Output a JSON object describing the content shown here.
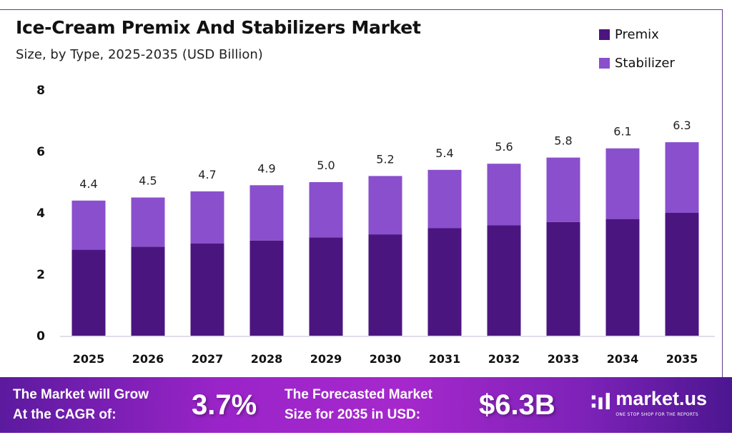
{
  "chart_data": {
    "type": "bar",
    "stacked": true,
    "title": "Ice-Cream Premix And Stabilizers Market",
    "subtitle": "Size, by Type, 2025-2035 (USD Billion)",
    "categories": [
      "2025",
      "2026",
      "2027",
      "2028",
      "2029",
      "2030",
      "2031",
      "2032",
      "2033",
      "2034",
      "2035"
    ],
    "series": [
      {
        "name": "Premix",
        "color": "#4b1580",
        "values": [
          2.8,
          2.9,
          3.0,
          3.1,
          3.2,
          3.3,
          3.5,
          3.6,
          3.7,
          3.8,
          4.0
        ]
      },
      {
        "name": "Stabilizer",
        "color": "#8a4fcc",
        "values": [
          1.6,
          1.6,
          1.7,
          1.8,
          1.8,
          1.9,
          1.9,
          2.0,
          2.1,
          2.3,
          2.3
        ]
      }
    ],
    "totals": [
      "4.4",
      "4.5",
      "4.7",
      "4.9",
      "5.0",
      "5.2",
      "5.4",
      "5.6",
      "5.8",
      "6.1",
      "6.3"
    ],
    "ylim": [
      0,
      8
    ],
    "yticks": [
      "0",
      "2",
      "4",
      "6",
      "8"
    ],
    "grid": false,
    "legend_position": "top-right"
  },
  "footer": {
    "cagr_text_1": "The Market will Grow",
    "cagr_text_2": "At the CAGR of:",
    "cagr_value": "3.7%",
    "forecast_text_1": "The Forecasted Market",
    "forecast_text_2": "Size for 2035 in USD:",
    "forecast_value": "$6.3B",
    "logo_name": "market.us",
    "logo_tagline": "ONE STOP SHOP FOR THE REPORTS"
  }
}
